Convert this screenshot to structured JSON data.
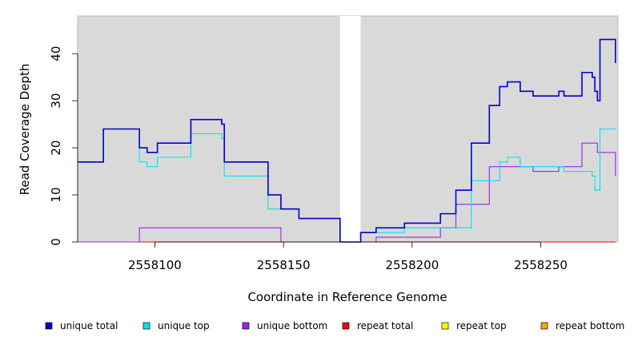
{
  "chart_data": {
    "type": "line",
    "step": true,
    "xlabel": "Coordinate in Reference Genome",
    "ylabel": "Read Coverage Depth",
    "xlim": [
      2558070,
      2558280
    ],
    "ylim": [
      0,
      48
    ],
    "x_ticks": [
      2558100,
      2558150,
      2558200,
      2558250
    ],
    "y_ticks": [
      0,
      10,
      20,
      30,
      40
    ],
    "background": "#d9d9d9",
    "gap_region": [
      2558172,
      2558180
    ],
    "legend_position": "bottom",
    "series": [
      {
        "name": "unique total",
        "color": "#0000cd",
        "points": [
          [
            2558070,
            17
          ],
          [
            2558080,
            17
          ],
          [
            2558080,
            24
          ],
          [
            2558094,
            24
          ],
          [
            2558094,
            20
          ],
          [
            2558097,
            20
          ],
          [
            2558097,
            19
          ],
          [
            2558101,
            19
          ],
          [
            2558101,
            21
          ],
          [
            2558114,
            21
          ],
          [
            2558114,
            26
          ],
          [
            2558126,
            26
          ],
          [
            2558126,
            25
          ],
          [
            2558127,
            25
          ],
          [
            2558127,
            17
          ],
          [
            2558144,
            17
          ],
          [
            2558144,
            10
          ],
          [
            2558149,
            10
          ],
          [
            2558149,
            7
          ],
          [
            2558156,
            7
          ],
          [
            2558156,
            5
          ],
          [
            2558172,
            5
          ],
          [
            2558172,
            0
          ],
          [
            2558180,
            0
          ],
          [
            2558180,
            2
          ],
          [
            2558186,
            2
          ],
          [
            2558186,
            3
          ],
          [
            2558197,
            3
          ],
          [
            2558197,
            4
          ],
          [
            2558211,
            4
          ],
          [
            2558211,
            6
          ],
          [
            2558217,
            6
          ],
          [
            2558217,
            11
          ],
          [
            2558223,
            11
          ],
          [
            2558223,
            21
          ],
          [
            2558230,
            21
          ],
          [
            2558230,
            29
          ],
          [
            2558234,
            29
          ],
          [
            2558234,
            33
          ],
          [
            2558237,
            33
          ],
          [
            2558237,
            34
          ],
          [
            2558242,
            34
          ],
          [
            2558242,
            32
          ],
          [
            2558247,
            32
          ],
          [
            2558247,
            31
          ],
          [
            2558257,
            31
          ],
          [
            2558257,
            32
          ],
          [
            2558259,
            32
          ],
          [
            2558259,
            31
          ],
          [
            2558266,
            31
          ],
          [
            2558266,
            36
          ],
          [
            2558270,
            36
          ],
          [
            2558270,
            35
          ],
          [
            2558271,
            35
          ],
          [
            2558271,
            32
          ],
          [
            2558272,
            32
          ],
          [
            2558272,
            30
          ],
          [
            2558273,
            30
          ],
          [
            2558273,
            43
          ],
          [
            2558279,
            43
          ],
          [
            2558279,
            38
          ]
        ]
      },
      {
        "name": "unique top",
        "color": "#00e5ee",
        "points": [
          [
            2558070,
            17
          ],
          [
            2558080,
            17
          ],
          [
            2558080,
            24
          ],
          [
            2558094,
            24
          ],
          [
            2558094,
            17
          ],
          [
            2558097,
            17
          ],
          [
            2558097,
            16
          ],
          [
            2558101,
            16
          ],
          [
            2558101,
            18
          ],
          [
            2558114,
            18
          ],
          [
            2558114,
            23
          ],
          [
            2558126,
            23
          ],
          [
            2558126,
            22
          ],
          [
            2558127,
            22
          ],
          [
            2558127,
            14
          ],
          [
            2558144,
            14
          ],
          [
            2558144,
            7
          ],
          [
            2558149,
            7
          ],
          [
            2558149,
            7
          ],
          [
            2558156,
            7
          ],
          [
            2558156,
            5
          ],
          [
            2558172,
            5
          ],
          [
            2558172,
            0
          ],
          [
            2558180,
            0
          ],
          [
            2558180,
            2
          ],
          [
            2558186,
            2
          ],
          [
            2558186,
            2
          ],
          [
            2558197,
            2
          ],
          [
            2558197,
            3
          ],
          [
            2558211,
            3
          ],
          [
            2558211,
            3
          ],
          [
            2558223,
            3
          ],
          [
            2558223,
            13
          ],
          [
            2558234,
            13
          ],
          [
            2558234,
            17
          ],
          [
            2558237,
            17
          ],
          [
            2558237,
            18
          ],
          [
            2558242,
            18
          ],
          [
            2558242,
            16
          ],
          [
            2558247,
            16
          ],
          [
            2558247,
            16
          ],
          [
            2558259,
            16
          ],
          [
            2558259,
            15
          ],
          [
            2558270,
            15
          ],
          [
            2558270,
            14
          ],
          [
            2558271,
            14
          ],
          [
            2558271,
            11
          ],
          [
            2558273,
            11
          ],
          [
            2558273,
            24
          ],
          [
            2558279,
            24
          ],
          [
            2558279,
            24
          ]
        ]
      },
      {
        "name": "unique bottom",
        "color": "#a020f0",
        "points": [
          [
            2558070,
            0
          ],
          [
            2558094,
            0
          ],
          [
            2558094,
            3
          ],
          [
            2558149,
            3
          ],
          [
            2558149,
            0
          ],
          [
            2558186,
            0
          ],
          [
            2558186,
            1
          ],
          [
            2558211,
            1
          ],
          [
            2558211,
            3
          ],
          [
            2558217,
            3
          ],
          [
            2558217,
            8
          ],
          [
            2558230,
            8
          ],
          [
            2558230,
            16
          ],
          [
            2558247,
            16
          ],
          [
            2558247,
            15
          ],
          [
            2558257,
            15
          ],
          [
            2558257,
            16
          ],
          [
            2558266,
            16
          ],
          [
            2558266,
            21
          ],
          [
            2558272,
            21
          ],
          [
            2558272,
            19
          ],
          [
            2558279,
            19
          ],
          [
            2558279,
            14
          ]
        ]
      },
      {
        "name": "repeat total",
        "color": "#ff0000",
        "points": [
          [
            2558070,
            0
          ],
          [
            2558279,
            0
          ]
        ]
      },
      {
        "name": "repeat top",
        "color": "#ffff00",
        "points": [
          [
            2558070,
            0
          ],
          [
            2558279,
            0
          ]
        ]
      },
      {
        "name": "repeat bottom",
        "color": "#ffa500",
        "points": [
          [
            2558070,
            0
          ],
          [
            2558279,
            0
          ]
        ]
      }
    ]
  }
}
